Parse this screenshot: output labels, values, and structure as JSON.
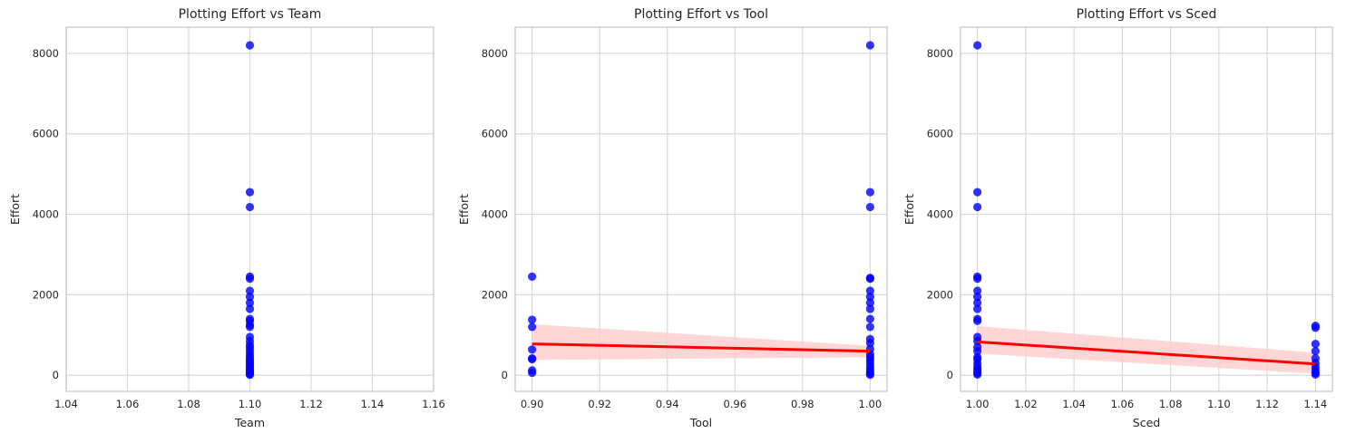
{
  "chart_data": [
    {
      "type": "scatter",
      "title": "Plotting Effort vs Team",
      "xlabel": "Team",
      "ylabel": "Effort",
      "xlim": [
        1.04,
        1.16
      ],
      "ylim": [
        -400,
        8650
      ],
      "xticks": [
        "1.04",
        "1.06",
        "1.08",
        "1.10",
        "1.12",
        "1.14",
        "1.16"
      ],
      "yticks": [
        "0",
        "2000",
        "4000",
        "6000",
        "8000"
      ],
      "grid": true,
      "point_color": "#0000ff",
      "series": [
        {
          "x": [
            1.1,
            1.1,
            1.1,
            1.1,
            1.1,
            1.1,
            1.1,
            1.1,
            1.1,
            1.1,
            1.1,
            1.1,
            1.1,
            1.1,
            1.1,
            1.1,
            1.1,
            1.1,
            1.1,
            1.1,
            1.1,
            1.1,
            1.1,
            1.1,
            1.1,
            1.1,
            1.1,
            1.1,
            1.1,
            1.1,
            1.1
          ],
          "y": [
            8200,
            4550,
            4180,
            2450,
            2400,
            2100,
            1950,
            1800,
            1650,
            1400,
            1350,
            1250,
            1200,
            950,
            850,
            750,
            680,
            600,
            520,
            450,
            400,
            350,
            300,
            250,
            200,
            160,
            120,
            90,
            60,
            30,
            10
          ]
        }
      ]
    },
    {
      "type": "scatter",
      "title": "Plotting Effort vs Tool",
      "xlabel": "Tool",
      "ylabel": "Effort",
      "xlim": [
        0.895,
        1.005
      ],
      "ylim": [
        -400,
        8650
      ],
      "xticks": [
        "0.90",
        "0.92",
        "0.94",
        "0.96",
        "0.98",
        "1.00"
      ],
      "yticks": [
        "0",
        "2000",
        "4000",
        "6000",
        "8000"
      ],
      "grid": true,
      "point_color": "#0000ff",
      "series": [
        {
          "x": [
            0.9,
            0.9,
            0.9,
            0.9,
            0.9,
            0.9,
            0.9,
            0.9,
            1.0,
            1.0,
            1.0,
            1.0,
            1.0,
            1.0,
            1.0,
            1.0,
            1.0,
            1.0,
            1.0,
            1.0,
            1.0,
            1.0,
            1.0,
            1.0,
            1.0,
            1.0,
            1.0,
            1.0,
            1.0,
            1.0,
            1.0
          ],
          "y": [
            2450,
            1380,
            1200,
            640,
            420,
            400,
            120,
            60,
            8200,
            4550,
            4180,
            2420,
            2400,
            2100,
            1950,
            1800,
            1650,
            1400,
            1200,
            900,
            800,
            650,
            520,
            450,
            380,
            300,
            220,
            150,
            90,
            40,
            10
          ]
        }
      ],
      "regression_line": {
        "x": [
          0.9,
          1.0
        ],
        "y": [
          780,
          600
        ],
        "color": "#ff0000"
      },
      "confidence_band": {
        "x": [
          0.9,
          1.0
        ],
        "upper": [
          1270,
          730
        ],
        "lower": [
          380,
          450
        ],
        "color": "#ffcccc"
      }
    },
    {
      "type": "scatter",
      "title": "Plotting Effort vs Sced",
      "xlabel": "Sced",
      "ylabel": "Effort",
      "xlim": [
        0.993,
        1.147
      ],
      "ylim": [
        -400,
        8650
      ],
      "xticks": [
        "1.00",
        "1.02",
        "1.04",
        "1.06",
        "1.08",
        "1.10",
        "1.12",
        "1.14"
      ],
      "yticks": [
        "0",
        "2000",
        "4000",
        "6000",
        "8000"
      ],
      "grid": true,
      "point_color": "#0000ff",
      "series": [
        {
          "x": [
            1.0,
            1.0,
            1.0,
            1.0,
            1.0,
            1.0,
            1.0,
            1.0,
            1.0,
            1.0,
            1.0,
            1.0,
            1.0,
            1.0,
            1.0,
            1.0,
            1.0,
            1.0,
            1.0,
            1.0,
            1.0,
            1.0,
            1.0,
            1.14,
            1.14,
            1.14,
            1.14,
            1.14,
            1.14,
            1.14,
            1.14,
            1.14,
            1.14
          ],
          "y": [
            8200,
            4550,
            4180,
            2450,
            2400,
            2100,
            1950,
            1800,
            1650,
            1400,
            1350,
            950,
            850,
            700,
            600,
            450,
            400,
            300,
            220,
            150,
            100,
            50,
            20,
            1230,
            1180,
            780,
            600,
            420,
            300,
            200,
            120,
            60,
            20
          ]
        }
      ],
      "regression_line": {
        "x": [
          1.0,
          1.14
        ],
        "y": [
          830,
          280
        ],
        "color": "#ff0000"
      },
      "confidence_band": {
        "x": [
          1.0,
          1.14
        ],
        "upper": [
          1220,
          560
        ],
        "lower": [
          540,
          40
        ],
        "color": "#ffcccc"
      }
    }
  ]
}
